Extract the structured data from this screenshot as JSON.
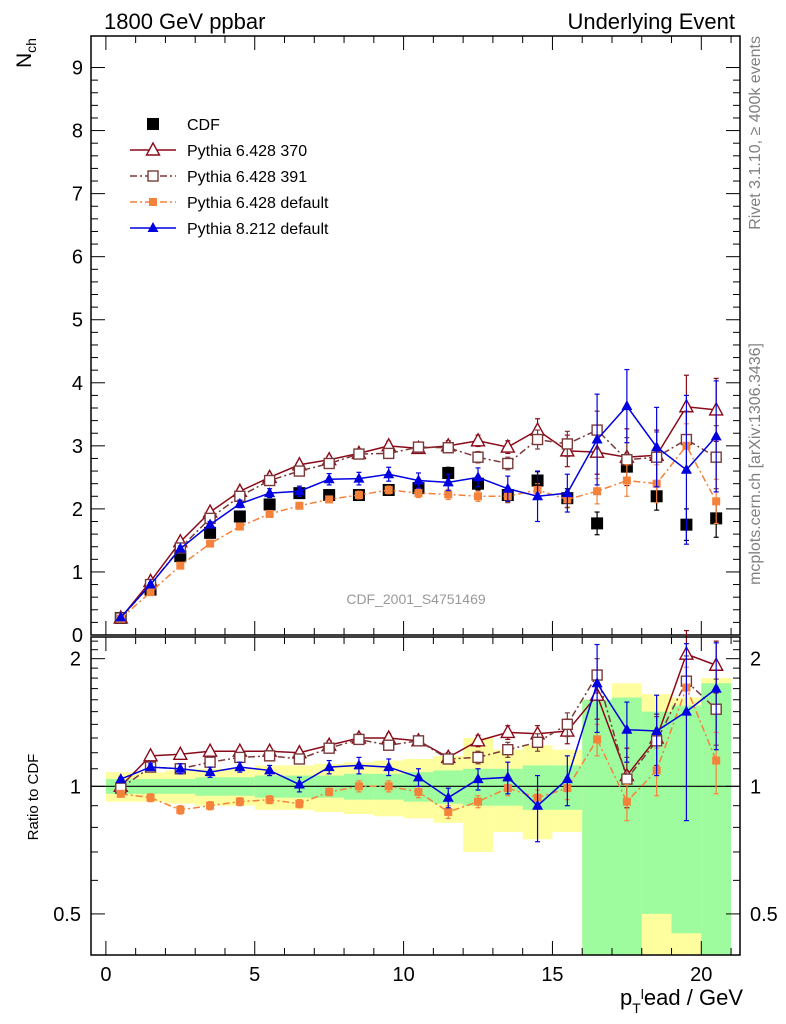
{
  "header": {
    "left": "1800 GeV ppbar",
    "right": "Underlying Event"
  },
  "side_labels": {
    "rivet": "Rivet 3.1.10, ≥ 400k events",
    "mcplots": "mcplots.cern.ch [arXiv:1306.3436]"
  },
  "analysis_id": "CDF_2001_S4751469",
  "colors": {
    "cdf": "#000000",
    "p370": "#8b0a1a",
    "p391": "#7a3a3a",
    "p6def": "#f5823a",
    "p8": "#0000e0",
    "band_green": "#9efc9e",
    "band_yellow": "#fffe9e"
  },
  "chart_data": [
    {
      "type": "scatter",
      "id": "main",
      "ylabel_base": "N",
      "ylabel_sub": "ch",
      "xlim": [
        -0.5,
        21.3
      ],
      "ylim": [
        0,
        9.5
      ],
      "yticks": [
        0,
        1,
        2,
        3,
        4,
        5,
        6,
        7,
        8,
        9
      ],
      "legend_position": "upper-left",
      "x": [
        0.5,
        1.5,
        2.5,
        3.5,
        4.5,
        5.5,
        6.5,
        7.5,
        8.5,
        9.5,
        10.5,
        11.5,
        12.5,
        13.5,
        14.5,
        15.5,
        16.5,
        17.5,
        18.5,
        19.5,
        20.5
      ],
      "series": [
        {
          "name": "CDF",
          "key": "cdf",
          "marker": "square-filled",
          "line": "none",
          "values": [
            0.27,
            0.72,
            1.25,
            1.62,
            1.88,
            2.07,
            2.25,
            2.22,
            2.22,
            2.3,
            2.33,
            2.57,
            2.4,
            2.22,
            2.45,
            2.17,
            1.77,
            2.67,
            2.2,
            1.75,
            1.85
          ],
          "errors": [
            0.01,
            0.02,
            0.03,
            0.03,
            0.04,
            0.05,
            0.05,
            0.06,
            0.06,
            0.07,
            0.08,
            0.09,
            0.1,
            0.12,
            0.14,
            0.15,
            0.18,
            0.2,
            0.22,
            0.25,
            0.3
          ]
        },
        {
          "name": "Pythia 6.428 370",
          "key": "p370",
          "marker": "triangle-open",
          "line": "solid",
          "values": [
            0.27,
            0.85,
            1.48,
            1.95,
            2.28,
            2.5,
            2.7,
            2.78,
            2.88,
            3.0,
            2.96,
            3.0,
            3.08,
            2.98,
            3.25,
            2.92,
            2.9,
            2.82,
            2.85,
            3.62,
            3.57
          ],
          "errors": [
            0.01,
            0.02,
            0.03,
            0.04,
            0.04,
            0.05,
            0.05,
            0.06,
            0.06,
            0.07,
            0.07,
            0.08,
            0.09,
            0.1,
            0.18,
            0.25,
            0.35,
            0.45,
            0.4,
            0.5,
            0.5
          ]
        },
        {
          "name": "Pythia 6.428 391",
          "key": "p391",
          "marker": "square-open",
          "line": "dashdot",
          "values": [
            0.27,
            0.8,
            1.38,
            1.85,
            2.2,
            2.45,
            2.6,
            2.72,
            2.87,
            2.88,
            2.98,
            2.97,
            2.82,
            2.72,
            3.1,
            3.03,
            3.25,
            2.78,
            2.82,
            3.1,
            2.82
          ],
          "errors": [
            0.01,
            0.02,
            0.03,
            0.04,
            0.04,
            0.05,
            0.05,
            0.06,
            0.06,
            0.07,
            0.07,
            0.08,
            0.09,
            0.1,
            0.15,
            0.2,
            0.3,
            0.35,
            0.4,
            0.45,
            0.5
          ]
        },
        {
          "name": "Pythia 6.428 default",
          "key": "p6def",
          "marker": "square-small-filled",
          "line": "dashdot",
          "values": [
            0.26,
            0.68,
            1.1,
            1.45,
            1.72,
            1.92,
            2.05,
            2.15,
            2.22,
            2.3,
            2.25,
            2.23,
            2.2,
            2.2,
            2.3,
            2.15,
            2.28,
            2.45,
            2.4,
            3.0,
            2.12
          ],
          "errors": [
            0.01,
            0.02,
            0.03,
            0.03,
            0.04,
            0.04,
            0.05,
            0.05,
            0.06,
            0.06,
            0.07,
            0.08,
            0.08,
            0.09,
            0.1,
            0.12,
            0.2,
            0.25,
            0.3,
            0.35,
            0.35
          ]
        },
        {
          "name": "Pythia 8.212 default",
          "key": "p8",
          "marker": "triangle-filled",
          "line": "solid",
          "values": [
            0.28,
            0.8,
            1.37,
            1.75,
            2.08,
            2.25,
            2.28,
            2.47,
            2.48,
            2.55,
            2.45,
            2.42,
            2.5,
            2.32,
            2.2,
            2.25,
            3.1,
            3.63,
            2.98,
            2.62,
            3.15
          ],
          "errors": [
            0.01,
            0.03,
            0.04,
            0.05,
            0.06,
            0.07,
            0.08,
            0.09,
            0.1,
            0.11,
            0.12,
            0.13,
            0.15,
            0.2,
            0.4,
            0.3,
            0.72,
            0.58,
            0.63,
            1.18,
            0.88
          ]
        }
      ]
    },
    {
      "type": "scatter",
      "id": "ratio",
      "ylabel": "Ratio to CDF",
      "xlabel_base": "p",
      "xlabel_sub": "T",
      "xlabel_sup": "l",
      "xlabel_rest": "ead / GeV",
      "xlim": [
        -0.5,
        21.3
      ],
      "ylim": [
        0.4,
        2.25
      ],
      "yscale": "log",
      "yticks": [
        0.5,
        1,
        2
      ],
      "xticks": [
        0,
        5,
        10,
        15,
        20
      ],
      "x": [
        0.5,
        1.5,
        2.5,
        3.5,
        4.5,
        5.5,
        6.5,
        7.5,
        8.5,
        9.5,
        10.5,
        11.5,
        12.5,
        13.5,
        14.5,
        15.5,
        16.5,
        17.5,
        18.5,
        19.5,
        20.5
      ],
      "band_green": [
        0.04,
        0.04,
        0.04,
        0.05,
        0.05,
        0.06,
        0.06,
        0.06,
        0.07,
        0.07,
        0.08,
        0.09,
        0.1,
        0.1,
        0.12,
        0.12,
        0.6,
        0.62,
        0.5,
        0.55,
        0.75
      ],
      "band_yellow": [
        0.08,
        0.08,
        0.09,
        0.1,
        0.1,
        0.12,
        0.12,
        0.13,
        0.14,
        0.15,
        0.16,
        0.18,
        0.3,
        0.22,
        0.25,
        0.22,
        0.6,
        0.75,
        0.65,
        0.62,
        0.8
      ],
      "series": [
        {
          "key": "p370",
          "values": [
            1.0,
            1.18,
            1.19,
            1.21,
            1.21,
            1.21,
            1.2,
            1.25,
            1.3,
            1.3,
            1.28,
            1.17,
            1.28,
            1.34,
            1.33,
            1.35,
            1.64,
            1.06,
            1.3,
            2.05,
            1.93
          ],
          "errors": [
            0.01,
            0.02,
            0.02,
            0.02,
            0.02,
            0.02,
            0.02,
            0.03,
            0.03,
            0.03,
            0.03,
            0.03,
            0.04,
            0.05,
            0.06,
            0.09,
            0.2,
            0.17,
            0.18,
            0.28,
            0.27
          ]
        },
        {
          "key": "p391",
          "values": [
            0.99,
            1.11,
            1.1,
            1.14,
            1.17,
            1.18,
            1.16,
            1.23,
            1.29,
            1.25,
            1.28,
            1.16,
            1.17,
            1.22,
            1.27,
            1.4,
            1.83,
            1.04,
            1.28,
            1.77,
            1.52
          ],
          "errors": [
            0.01,
            0.02,
            0.02,
            0.02,
            0.02,
            0.02,
            0.02,
            0.03,
            0.03,
            0.03,
            0.03,
            0.03,
            0.04,
            0.05,
            0.06,
            0.09,
            0.17,
            0.13,
            0.18,
            0.26,
            0.27
          ]
        },
        {
          "key": "p6def",
          "values": [
            0.96,
            0.94,
            0.88,
            0.9,
            0.92,
            0.93,
            0.91,
            0.97,
            1.0,
            1.0,
            0.97,
            0.87,
            0.92,
            0.99,
            0.94,
            0.99,
            1.29,
            0.92,
            1.09,
            1.71,
            1.15
          ],
          "errors": [
            0.01,
            0.02,
            0.02,
            0.02,
            0.02,
            0.02,
            0.02,
            0.02,
            0.03,
            0.03,
            0.03,
            0.03,
            0.03,
            0.04,
            0.04,
            0.06,
            0.11,
            0.09,
            0.14,
            0.2,
            0.19
          ]
        },
        {
          "key": "p8",
          "values": [
            1.04,
            1.11,
            1.1,
            1.08,
            1.11,
            1.09,
            1.01,
            1.11,
            1.12,
            1.11,
            1.05,
            0.94,
            1.04,
            1.05,
            0.9,
            1.04,
            1.75,
            1.36,
            1.35,
            1.5,
            1.7
          ],
          "errors": [
            0.01,
            0.02,
            0.03,
            0.03,
            0.03,
            0.03,
            0.04,
            0.04,
            0.05,
            0.05,
            0.05,
            0.05,
            0.06,
            0.09,
            0.16,
            0.14,
            0.41,
            0.22,
            0.29,
            0.67,
            0.48
          ]
        }
      ]
    }
  ]
}
